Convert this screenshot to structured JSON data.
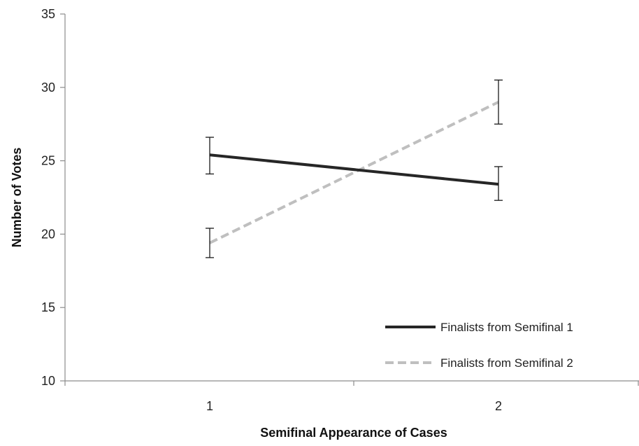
{
  "chart_data": {
    "type": "line",
    "title": "",
    "xlabel": "Semifinal Appearance of Cases",
    "ylabel": "Number of Votes",
    "categories": [
      "1",
      "2"
    ],
    "ylim": [
      10,
      35
    ],
    "yticks": [
      "10",
      "15",
      "20",
      "25",
      "30",
      "35"
    ],
    "grid": false,
    "legend_position": "bottom-right",
    "series": [
      {
        "name": "Finalists from Semifinal 1",
        "values": [
          25.4,
          23.4
        ],
        "error": [
          [
            24.1,
            26.6
          ],
          [
            22.3,
            24.6
          ]
        ],
        "color": "#262626",
        "style": "solid"
      },
      {
        "name": "Finalists from Semifinal 2",
        "values": [
          19.4,
          29.0
        ],
        "error": [
          [
            18.4,
            20.4
          ],
          [
            27.5,
            30.5
          ]
        ],
        "color": "#bfbfbf",
        "style": "dashed"
      }
    ]
  }
}
